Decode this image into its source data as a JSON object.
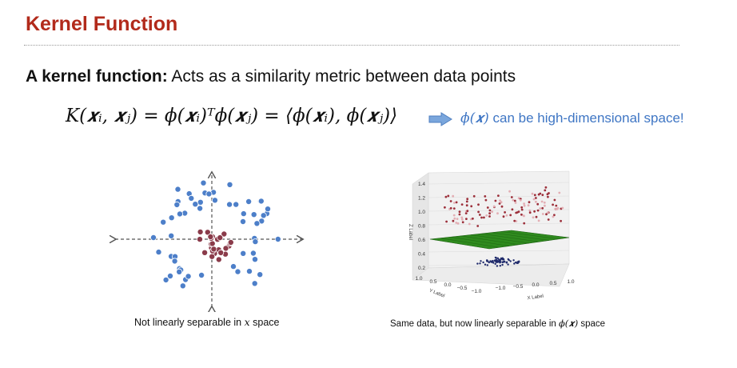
{
  "title": "Kernel Function",
  "definition": {
    "term": "A kernel function:",
    "text": "Acts as a similarity metric between data points"
  },
  "formula": {
    "text": "K(𝒙ᵢ, 𝒙ⱼ) = ϕ(𝒙ᵢ)ᵀϕ(𝒙ⱼ) = ⟨ϕ(𝒙ᵢ), ϕ(𝒙ⱼ)⟩"
  },
  "callout": {
    "phi": "ϕ(𝒙)",
    "text": "can be high-dimensional space!"
  },
  "left_figure": {
    "caption_prefix": "Not linearly separable in",
    "caption_var": "x",
    "caption_suffix": "space",
    "outer_color": "#4d7fc9",
    "inner_color": "#8a3b4a"
  },
  "right_figure": {
    "caption_prefix": "Same data, but now linearly separable in",
    "caption_var": "ϕ(𝒙)",
    "caption_suffix": "space",
    "z_label": "Z Label",
    "x_label": "X Label",
    "y_label": "Y Label",
    "z_ticks": [
      "1.4",
      "1.2",
      "1.0",
      "0.8",
      "0.6",
      "0.4",
      "0.2"
    ],
    "x_ticks": [
      "−1.0",
      "−0.5",
      "0.0",
      "0.5",
      "1.0"
    ],
    "y_ticks": [
      "1.0",
      "0.5",
      "0.0",
      "−0.5",
      "−1.0"
    ],
    "plane_color": "#2f8a1e",
    "upper_color": "#9c2f3a",
    "lower_color": "#1f2a6b"
  },
  "icons": {
    "arrow": "right-arrow-icon"
  },
  "accent_color": "#b22a1b"
}
